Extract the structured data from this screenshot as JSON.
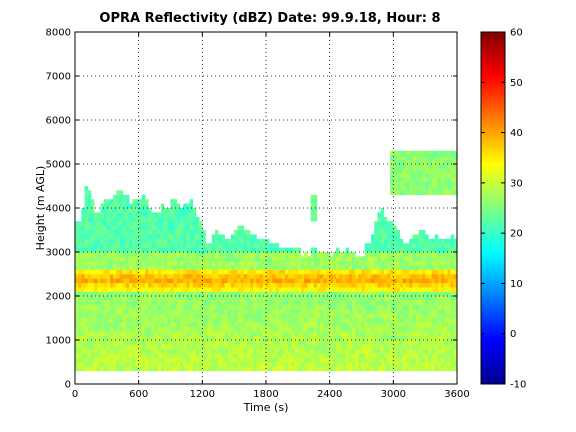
{
  "chart_data": {
    "type": "heatmap",
    "title": "OPRA Reflectivity (dBZ)  Date: 99.9.18, Hour: 8",
    "xlabel": "Time (s)",
    "ylabel": "Height (m AGL)",
    "xlim": [
      0,
      3600
    ],
    "ylim": [
      0,
      8000
    ],
    "xticks": [
      "0",
      "600",
      "1200",
      "1800",
      "2400",
      "3000",
      "3600"
    ],
    "yticks": [
      "0",
      "1000",
      "2000",
      "3000",
      "4000",
      "5000",
      "6000",
      "7000",
      "8000"
    ],
    "grid": true,
    "colorbar": {
      "range": [
        -10,
        60
      ],
      "ticks": [
        "-10",
        "0",
        "10",
        "20",
        "30",
        "40",
        "50",
        "60"
      ],
      "colormap": "jet"
    },
    "echo_base_height": 300,
    "echo_top_profile": [
      {
        "t": 0,
        "top": 3600
      },
      {
        "t": 60,
        "top": 3700
      },
      {
        "t": 90,
        "top": 4500
      },
      {
        "t": 150,
        "top": 4300
      },
      {
        "t": 200,
        "top": 3900
      },
      {
        "t": 300,
        "top": 4200
      },
      {
        "t": 420,
        "top": 4400
      },
      {
        "t": 540,
        "top": 4150
      },
      {
        "t": 640,
        "top": 4300
      },
      {
        "t": 700,
        "top": 4000
      },
      {
        "t": 760,
        "top": 3850
      },
      {
        "t": 820,
        "top": 4050
      },
      {
        "t": 880,
        "top": 4000
      },
      {
        "t": 940,
        "top": 4250
      },
      {
        "t": 1000,
        "top": 4000
      },
      {
        "t": 1080,
        "top": 4150
      },
      {
        "t": 1140,
        "top": 3900
      },
      {
        "t": 1200,
        "top": 3700
      },
      {
        "t": 1250,
        "top": 3100
      },
      {
        "t": 1320,
        "top": 3500
      },
      {
        "t": 1440,
        "top": 3300
      },
      {
        "t": 1560,
        "top": 3650
      },
      {
        "t": 1700,
        "top": 3350
      },
      {
        "t": 1800,
        "top": 3300
      },
      {
        "t": 1900,
        "top": 3150
      },
      {
        "t": 2040,
        "top": 3100
      },
      {
        "t": 2160,
        "top": 2950
      },
      {
        "t": 2280,
        "top": 3100
      },
      {
        "t": 2400,
        "top": 2950
      },
      {
        "t": 2460,
        "top": 3100
      },
      {
        "t": 2580,
        "top": 3050
      },
      {
        "t": 2700,
        "top": 2900
      },
      {
        "t": 2800,
        "top": 3300
      },
      {
        "t": 2880,
        "top": 4100
      },
      {
        "t": 2940,
        "top": 3700
      },
      {
        "t": 3000,
        "top": 3600
      },
      {
        "t": 3120,
        "top": 3250
      },
      {
        "t": 3240,
        "top": 3500
      },
      {
        "t": 3360,
        "top": 3300
      },
      {
        "t": 3480,
        "top": 3350
      },
      {
        "t": 3600,
        "top": 3300
      }
    ],
    "bright_band": {
      "bottom": 2150,
      "top": 2600,
      "dbz": 40
    },
    "upper_patches": [
      {
        "t_start": 2220,
        "t_end": 2290,
        "bottom": 3700,
        "top": 4300,
        "dbz": 24
      },
      {
        "t_start": 2960,
        "t_end": 3590,
        "bottom": 4300,
        "top": 5300,
        "dbz": 26
      }
    ],
    "dbz_levels": {
      "upper_cloud": 22,
      "mid_layer": 27,
      "bright_band": 40,
      "lower_rain": 30
    }
  }
}
